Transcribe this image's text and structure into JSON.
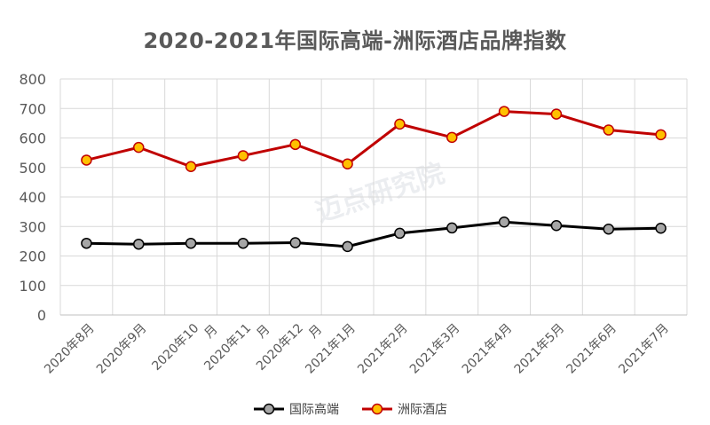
{
  "chart_data": {
    "type": "line",
    "title": "2020-2021年国际高端-洲际酒店品牌指数",
    "categories": [
      "2020年8月",
      "2020年9月",
      "2020年10月",
      "2020年11月",
      "2020年12月",
      "2021年1月",
      "2021年2月",
      "2021年3月",
      "2021年4月",
      "2021年5月",
      "2021年6月",
      "2021年7月"
    ],
    "category_lines": [
      [
        "2020年8月"
      ],
      [
        "2020年9月"
      ],
      [
        "2020年10",
        "月"
      ],
      [
        "2020年11",
        "月"
      ],
      [
        "2020年12",
        "月"
      ],
      [
        "2021年1月"
      ],
      [
        "2021年2月"
      ],
      [
        "2021年3月"
      ],
      [
        "2021年4月"
      ],
      [
        "2021年5月"
      ],
      [
        "2021年6月"
      ],
      [
        "2021年7月"
      ]
    ],
    "series": [
      {
        "name": "国际高端",
        "color": "#000000",
        "marker": "#a6a6a6",
        "values": [
          243,
          240,
          243,
          243,
          245,
          232,
          277,
          295,
          315,
          303,
          291,
          294
        ]
      },
      {
        "name": "洲际酒店",
        "color": "#c00000",
        "marker": "#ffc000",
        "values": [
          525,
          568,
          503,
          540,
          578,
          512,
          647,
          602,
          690,
          681,
          627,
          611
        ]
      }
    ],
    "ylim": [
      0,
      800
    ],
    "yticks": [
      0,
      100,
      200,
      300,
      400,
      500,
      600,
      700,
      800
    ],
    "grid": true,
    "legend": "bottom",
    "watermark": "迈点研究院"
  }
}
